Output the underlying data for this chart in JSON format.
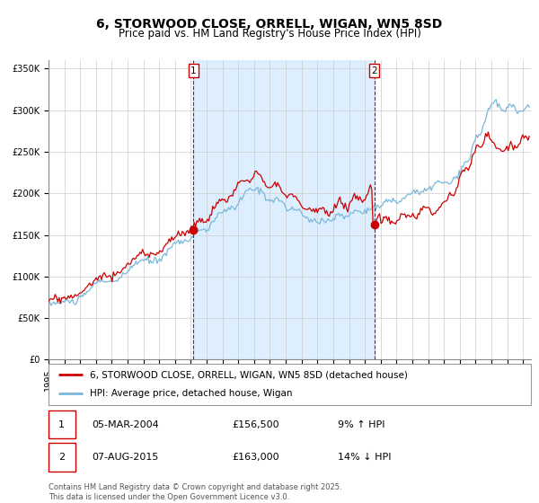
{
  "title": "6, STORWOOD CLOSE, ORRELL, WIGAN, WN5 8SD",
  "subtitle": "Price paid vs. HM Land Registry's House Price Index (HPI)",
  "ylim": [
    0,
    360000
  ],
  "yticks": [
    0,
    50000,
    100000,
    150000,
    200000,
    250000,
    300000,
    350000
  ],
  "ytick_labels": [
    "£0",
    "£50K",
    "£100K",
    "£150K",
    "£200K",
    "£250K",
    "£300K",
    "£350K"
  ],
  "xlim_start": 1995.0,
  "xlim_end": 2025.5,
  "xtick_years": [
    1995,
    1996,
    1997,
    1998,
    1999,
    2000,
    2001,
    2002,
    2003,
    2004,
    2005,
    2006,
    2007,
    2008,
    2009,
    2010,
    2011,
    2012,
    2013,
    2014,
    2015,
    2016,
    2017,
    2018,
    2019,
    2020,
    2021,
    2022,
    2023,
    2024,
    2025
  ],
  "sale1_x": 2004.17,
  "sale1_y": 156500,
  "sale1_label": "1",
  "sale1_date": "05-MAR-2004",
  "sale1_price": "£156,500",
  "sale1_hpi": "9% ↑ HPI",
  "sale2_x": 2015.59,
  "sale2_y": 163000,
  "sale2_label": "2",
  "sale2_date": "07-AUG-2015",
  "sale2_price": "£163,000",
  "sale2_hpi": "14% ↓ HPI",
  "red_line_color": "#cc0000",
  "blue_line_color": "#7ab8d9",
  "shaded_color": "#ddeeff",
  "grid_color": "#cccccc",
  "vline_color": "#cc0000",
  "legend_line1": "6, STORWOOD CLOSE, ORRELL, WIGAN, WN5 8SD (detached house)",
  "legend_line2": "HPI: Average price, detached house, Wigan",
  "footnote": "Contains HM Land Registry data © Crown copyright and database right 2025.\nThis data is licensed under the Open Government Licence v3.0.",
  "title_fontsize": 10,
  "subtitle_fontsize": 8.5,
  "tick_fontsize": 7,
  "legend_fontsize": 7.5
}
